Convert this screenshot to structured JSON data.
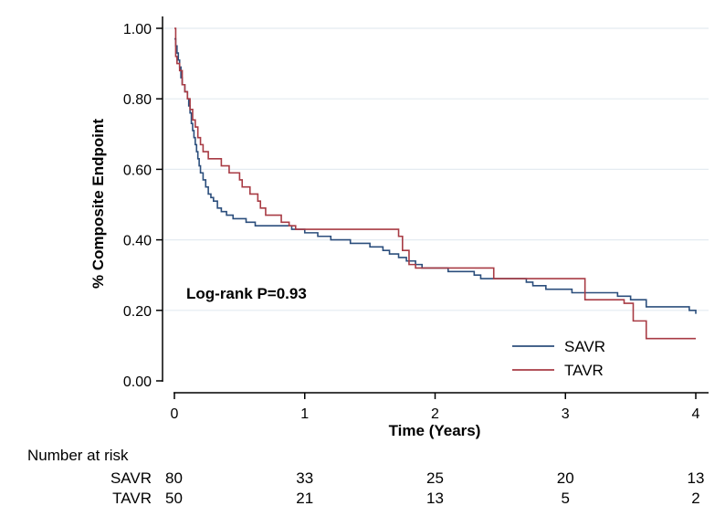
{
  "chart_data": {
    "type": "line",
    "subtype": "kaplan-meier-step",
    "title": "",
    "xlabel": "Time (Years)",
    "ylabel": "% Composite Endpoint",
    "xlim": [
      0,
      4
    ],
    "ylim": [
      0,
      1
    ],
    "xticks": [
      "0",
      "1",
      "2",
      "3",
      "4"
    ],
    "yticks": [
      "0.00",
      "0.20",
      "0.40",
      "0.60",
      "0.80",
      "1.00"
    ],
    "grid": "horizontal",
    "legend_position": "bottom-right",
    "annotation": "Log-rank P=0.93",
    "series": [
      {
        "name": "SAVR",
        "color": "#2b4e7c",
        "points": [
          [
            0.0,
            0.97
          ],
          [
            0.01,
            0.95
          ],
          [
            0.02,
            0.93
          ],
          [
            0.03,
            0.91
          ],
          [
            0.04,
            0.89
          ],
          [
            0.05,
            0.86
          ],
          [
            0.06,
            0.84
          ],
          [
            0.08,
            0.82
          ],
          [
            0.1,
            0.8
          ],
          [
            0.11,
            0.78
          ],
          [
            0.12,
            0.76
          ],
          [
            0.13,
            0.73
          ],
          [
            0.14,
            0.71
          ],
          [
            0.15,
            0.69
          ],
          [
            0.16,
            0.67
          ],
          [
            0.17,
            0.65
          ],
          [
            0.18,
            0.63
          ],
          [
            0.19,
            0.61
          ],
          [
            0.2,
            0.59
          ],
          [
            0.22,
            0.57
          ],
          [
            0.24,
            0.55
          ],
          [
            0.26,
            0.53
          ],
          [
            0.28,
            0.52
          ],
          [
            0.3,
            0.51
          ],
          [
            0.33,
            0.49
          ],
          [
            0.36,
            0.48
          ],
          [
            0.4,
            0.47
          ],
          [
            0.45,
            0.46
          ],
          [
            0.55,
            0.45
          ],
          [
            0.62,
            0.44
          ],
          [
            0.72,
            0.44
          ],
          [
            0.9,
            0.43
          ],
          [
            1.0,
            0.42
          ],
          [
            1.1,
            0.41
          ],
          [
            1.2,
            0.4
          ],
          [
            1.35,
            0.39
          ],
          [
            1.5,
            0.38
          ],
          [
            1.6,
            0.37
          ],
          [
            1.65,
            0.36
          ],
          [
            1.72,
            0.35
          ],
          [
            1.78,
            0.34
          ],
          [
            1.85,
            0.33
          ],
          [
            1.9,
            0.32
          ],
          [
            2.1,
            0.31
          ],
          [
            2.3,
            0.3
          ],
          [
            2.35,
            0.29
          ],
          [
            2.7,
            0.28
          ],
          [
            2.75,
            0.27
          ],
          [
            2.85,
            0.26
          ],
          [
            3.05,
            0.25
          ],
          [
            3.25,
            0.25
          ],
          [
            3.4,
            0.24
          ],
          [
            3.5,
            0.23
          ],
          [
            3.62,
            0.21
          ],
          [
            3.95,
            0.2
          ],
          [
            4.0,
            0.19
          ]
        ]
      },
      {
        "name": "TAVR",
        "color": "#a83b44",
        "points": [
          [
            0.0,
            1.0
          ],
          [
            0.01,
            0.92
          ],
          [
            0.02,
            0.9
          ],
          [
            0.04,
            0.88
          ],
          [
            0.06,
            0.84
          ],
          [
            0.08,
            0.82
          ],
          [
            0.1,
            0.8
          ],
          [
            0.12,
            0.77
          ],
          [
            0.14,
            0.74
          ],
          [
            0.16,
            0.72
          ],
          [
            0.18,
            0.69
          ],
          [
            0.2,
            0.67
          ],
          [
            0.22,
            0.65
          ],
          [
            0.26,
            0.63
          ],
          [
            0.36,
            0.61
          ],
          [
            0.42,
            0.59
          ],
          [
            0.5,
            0.57
          ],
          [
            0.52,
            0.55
          ],
          [
            0.58,
            0.53
          ],
          [
            0.64,
            0.51
          ],
          [
            0.66,
            0.49
          ],
          [
            0.7,
            0.47
          ],
          [
            0.82,
            0.45
          ],
          [
            0.88,
            0.44
          ],
          [
            0.93,
            0.43
          ],
          [
            1.72,
            0.41
          ],
          [
            1.75,
            0.37
          ],
          [
            1.8,
            0.33
          ],
          [
            1.85,
            0.32
          ],
          [
            2.45,
            0.29
          ],
          [
            3.15,
            0.23
          ],
          [
            3.45,
            0.22
          ],
          [
            3.52,
            0.17
          ],
          [
            3.62,
            0.12
          ],
          [
            4.0,
            0.12
          ]
        ]
      }
    ],
    "risk_table": {
      "title": "Number at risk",
      "times": [
        0,
        1,
        2,
        3,
        4
      ],
      "rows": [
        {
          "label": "SAVR",
          "counts": [
            "80",
            "33",
            "25",
            "20",
            "13"
          ]
        },
        {
          "label": "TAVR",
          "counts": [
            "50",
            "21",
            "13",
            "5",
            "2"
          ]
        }
      ]
    }
  }
}
